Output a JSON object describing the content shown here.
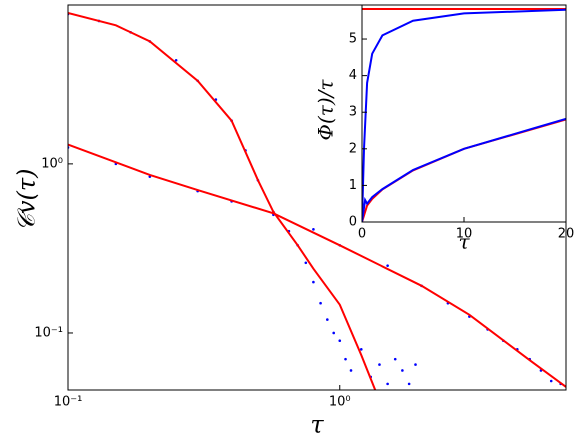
{
  "chart_data": [
    {
      "type": "line",
      "xlabel": "τ",
      "ylabel": "𝒞v(τ)",
      "log_x": true,
      "log_y": true,
      "xlim": [
        0.1,
        6.8
      ],
      "ylim": [
        0.046,
        8.7
      ],
      "xticks": [
        {
          "value": 0.1,
          "label": "10⁻¹"
        },
        {
          "value": 1,
          "label": "10⁰"
        }
      ],
      "yticks": [
        {
          "value": 0.1,
          "label": "10⁻¹"
        },
        {
          "value": 1,
          "label": "10⁰"
        }
      ],
      "series": [
        {
          "color": "#0000ff",
          "mode": "markers",
          "x": [
            0.1,
            0.13,
            0.17,
            0.2,
            0.25,
            0.3,
            0.35,
            0.4,
            0.45,
            0.5,
            0.57,
            0.65,
            0.7,
            0.75,
            0.8,
            0.85,
            0.9,
            0.95,
            1.0,
            1.05,
            1.1,
            1.2,
            1.3,
            1.4,
            1.5,
            1.6,
            1.7,
            1.8,
            1.9
          ],
          "values": [
            7.7,
            7.0,
            6.0,
            5.3,
            4.1,
            3.1,
            2.4,
            1.8,
            1.2,
            0.8,
            0.52,
            0.4,
            0.33,
            0.26,
            0.2,
            0.15,
            0.12,
            0.1,
            0.09,
            0.07,
            0.06,
            0.08,
            0.055,
            0.065,
            0.05,
            0.07,
            0.06,
            0.05,
            0.065
          ]
        },
        {
          "color": "#0000ff",
          "mode": "markers",
          "x": [
            0.1,
            0.15,
            0.2,
            0.3,
            0.4,
            0.57,
            0.8,
            1.0,
            1.5,
            2.0,
            2.5,
            3.0,
            3.5,
            4.0,
            4.5,
            5.0,
            5.5,
            6.0,
            6.5
          ],
          "values": [
            1.25,
            1.0,
            0.84,
            0.69,
            0.6,
            0.5,
            0.41,
            0.33,
            0.25,
            0.19,
            0.15,
            0.125,
            0.105,
            0.09,
            0.08,
            0.07,
            0.06,
            0.052,
            0.05
          ]
        },
        {
          "color": "#ff0000",
          "mode": "line",
          "x": [
            0.1,
            0.15,
            0.2,
            0.3,
            0.4,
            0.5,
            0.57,
            0.7,
            0.8,
            1.0,
            1.2,
            1.35
          ],
          "values": [
            7.8,
            6.6,
            5.3,
            3.1,
            1.8,
            0.8,
            0.52,
            0.33,
            0.24,
            0.147,
            0.074,
            0.046
          ]
        },
        {
          "color": "#ff0000",
          "mode": "line",
          "x": [
            0.1,
            0.2,
            0.3,
            0.57,
            1.0,
            2.0,
            3.0,
            5.0,
            6.8
          ],
          "values": [
            1.3,
            0.86,
            0.7,
            0.51,
            0.33,
            0.19,
            0.128,
            0.069,
            0.048
          ]
        }
      ]
    },
    {
      "type": "line",
      "xlabel": "τ",
      "ylabel": "Φ(τ)/τ",
      "xlim": [
        0,
        20
      ],
      "ylim": [
        0,
        5.93
      ],
      "xticks": [
        0,
        10,
        20
      ],
      "yticks": [
        0,
        1,
        2,
        3,
        4,
        5
      ],
      "series": [
        {
          "color": "#ff0000",
          "mode": "line",
          "x": [
            0,
            20
          ],
          "values": [
            5.82,
            5.82
          ]
        },
        {
          "color": "#0000ff",
          "mode": "line",
          "x": [
            0,
            0.2,
            0.5,
            1,
            2,
            5,
            10,
            20
          ],
          "values": [
            0,
            2,
            3.8,
            4.6,
            5.1,
            5.5,
            5.7,
            5.8
          ]
        },
        {
          "color": "#ff0000",
          "mode": "line",
          "x": [
            0,
            0.5,
            1,
            2,
            5,
            10,
            20
          ],
          "values": [
            0,
            0.45,
            0.63,
            0.89,
            1.41,
            2.0,
            2.8
          ]
        },
        {
          "color": "#0000ff",
          "mode": "line",
          "x": [
            0,
            0.3,
            0.5,
            1,
            2,
            5,
            10,
            20
          ],
          "values": [
            0,
            0.6,
            0.5,
            0.68,
            0.9,
            1.42,
            2.0,
            2.82
          ]
        }
      ]
    }
  ]
}
